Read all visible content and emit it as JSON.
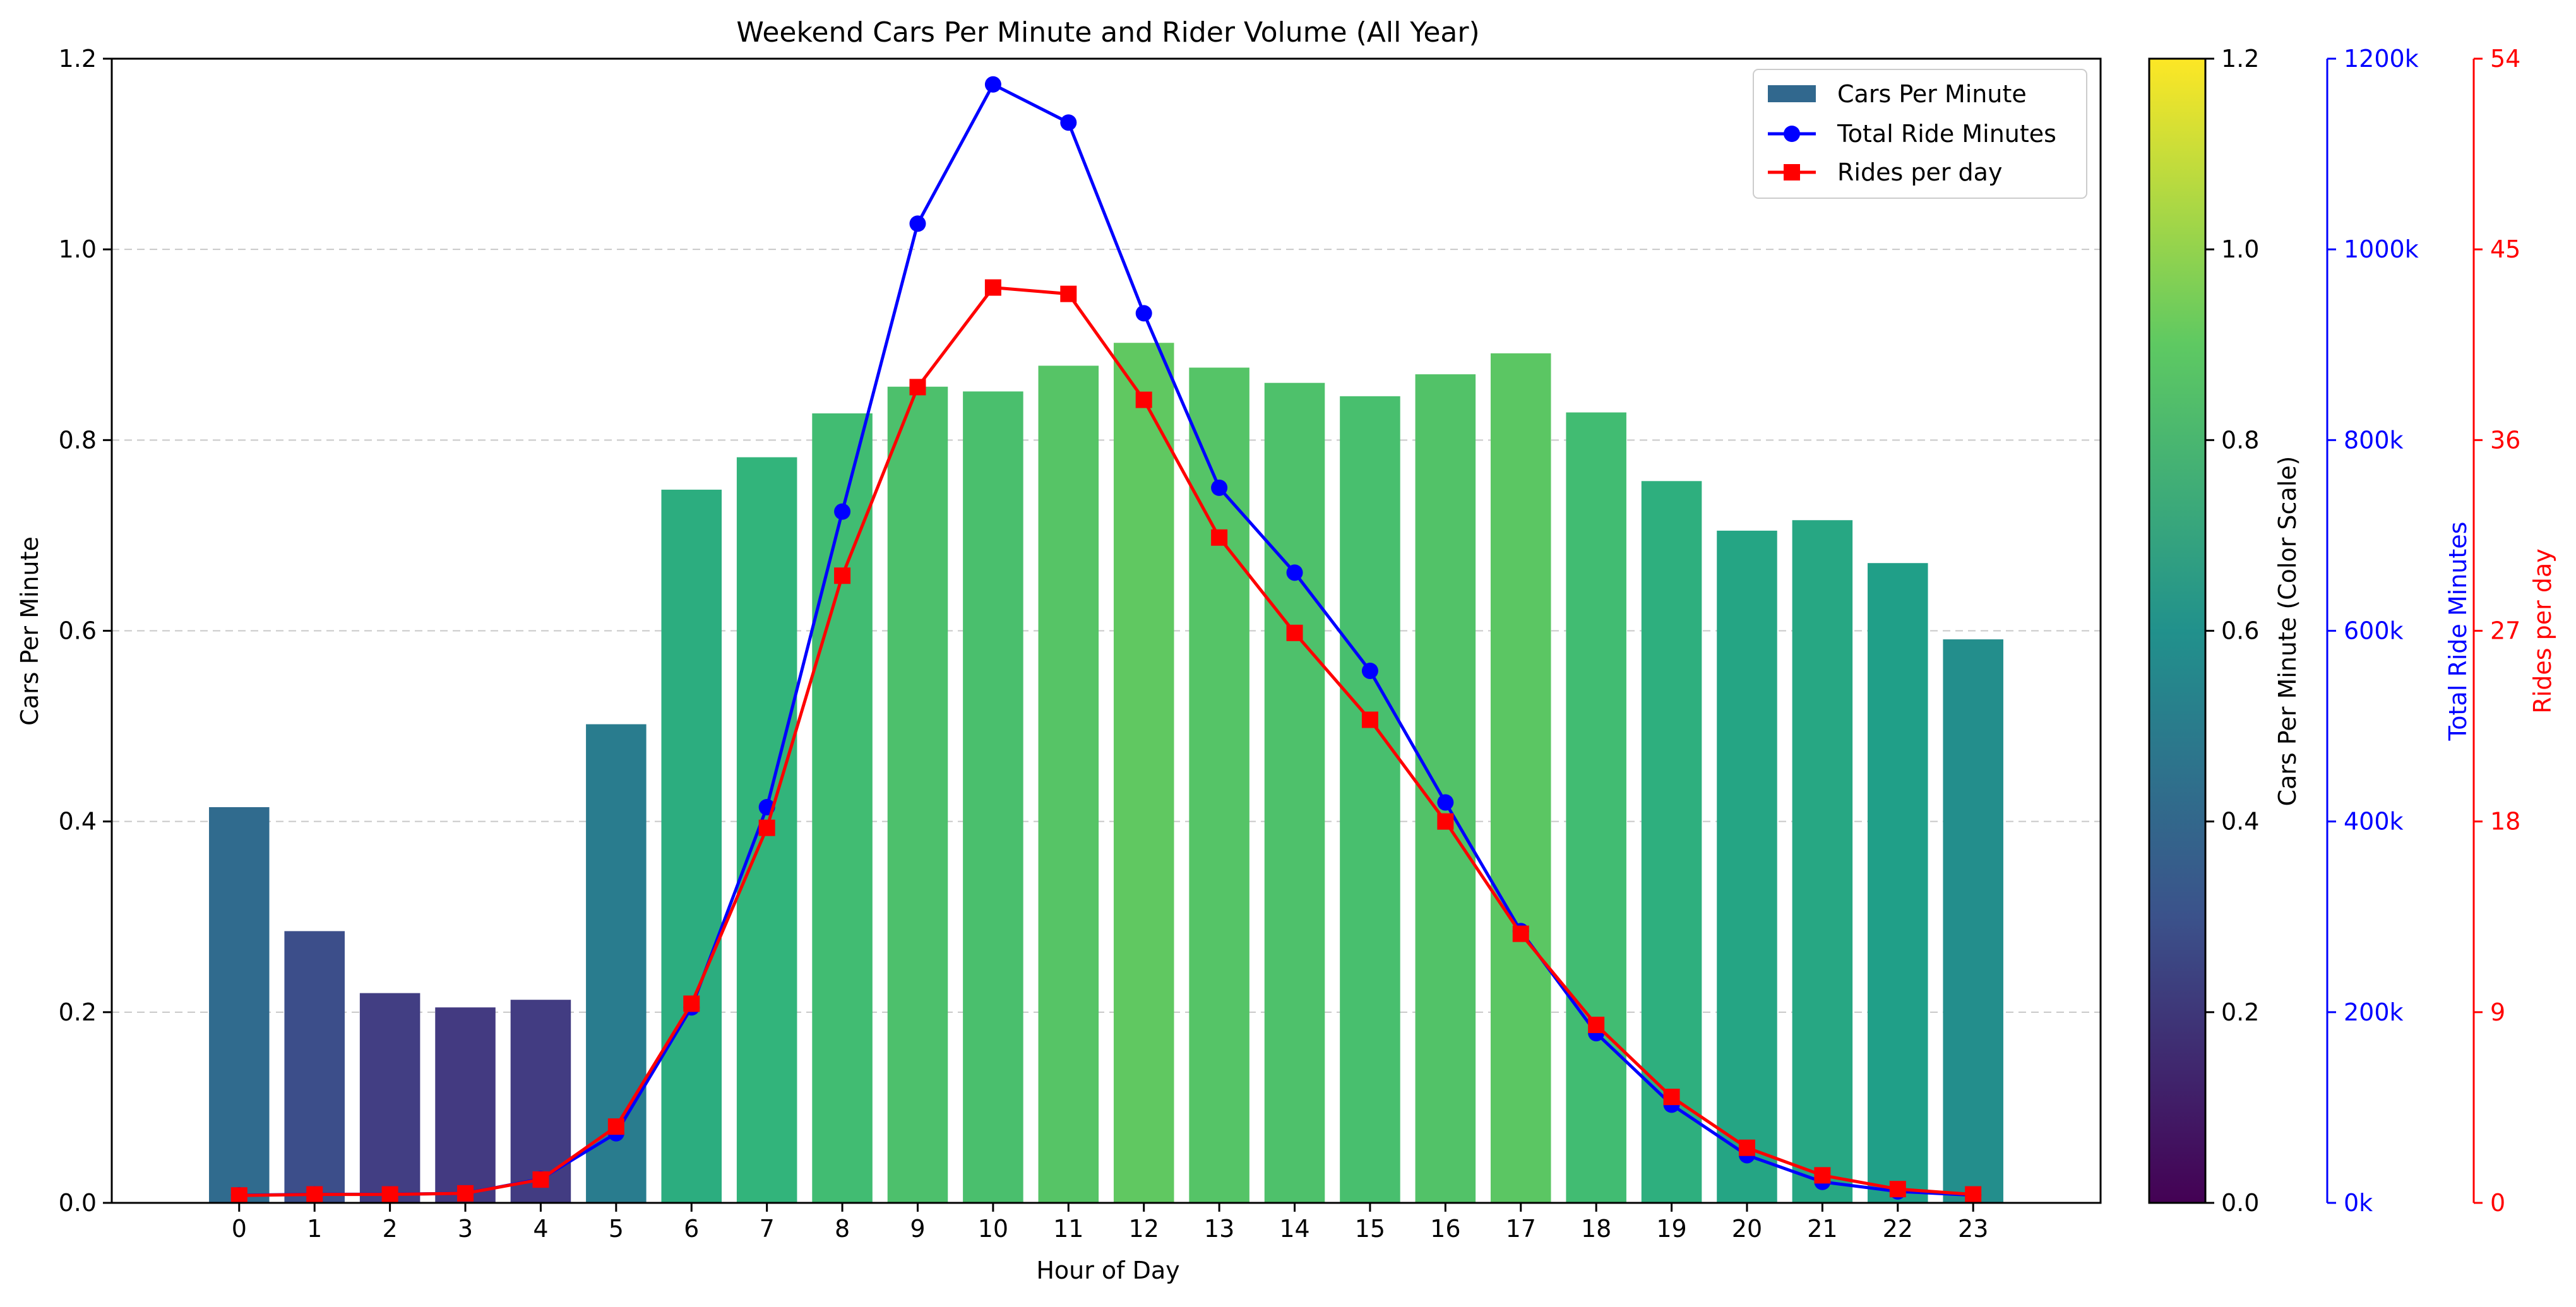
{
  "chart_data": {
    "type": "bar",
    "title": "Weekend Cars Per Minute and Rider Volume (All Year)",
    "xlabel": "Hour of Day",
    "ylabel": "Cars Per Minute",
    "categories": [
      "0",
      "1",
      "2",
      "3",
      "4",
      "5",
      "6",
      "7",
      "8",
      "9",
      "10",
      "11",
      "12",
      "13",
      "14",
      "15",
      "16",
      "17",
      "18",
      "19",
      "20",
      "21",
      "22",
      "23"
    ],
    "ylim": [
      0,
      1.2
    ],
    "y_ticks": [
      "0.0",
      "0.2",
      "0.4",
      "0.6",
      "0.8",
      "1.0",
      "1.2"
    ],
    "grid": "horizontal dashed",
    "legend_position": "top-right",
    "series": [
      {
        "name": "Cars Per Minute",
        "type": "bar",
        "axis": "left",
        "colormap": "viridis",
        "values": [
          0.415,
          0.285,
          0.22,
          0.205,
          0.213,
          0.502,
          0.748,
          0.782,
          0.828,
          0.856,
          0.851,
          0.878,
          0.902,
          0.876,
          0.86,
          0.846,
          0.869,
          0.891,
          0.829,
          0.757,
          0.705,
          0.716,
          0.671,
          0.591
        ]
      },
      {
        "name": "Total Ride Minutes",
        "type": "line",
        "marker": "circle",
        "color": "#0000ff",
        "axis": "right1",
        "values": [
          8000,
          9000,
          9000,
          10000,
          25000,
          73000,
          205000,
          415000,
          725000,
          1027000,
          1173000,
          1133000,
          933000,
          750000,
          661000,
          558000,
          420000,
          285000,
          178000,
          103000,
          50000,
          22000,
          12000,
          8000
        ]
      },
      {
        "name": "Rides per day",
        "type": "line",
        "marker": "square",
        "color": "#ff0000",
        "axis": "right2",
        "values": [
          0.35,
          0.4,
          0.4,
          0.45,
          1.1,
          3.6,
          9.4,
          17.7,
          29.6,
          38.5,
          43.2,
          42.9,
          37.9,
          31.4,
          26.9,
          22.8,
          18.0,
          12.7,
          8.4,
          5.0,
          2.6,
          1.3,
          0.65,
          0.4
        ]
      }
    ],
    "colorbar": {
      "label": "Cars Per Minute (Color Scale)",
      "range": [
        0,
        1.2
      ],
      "ticks": [
        "0.0",
        "0.2",
        "0.4",
        "0.6",
        "0.8",
        "1.0",
        "1.2"
      ]
    },
    "right_axis_1": {
      "label": "Total Ride Minutes",
      "range": [
        0,
        1200000
      ],
      "ticks": [
        "0k",
        "200k",
        "400k",
        "600k",
        "800k",
        "1000k",
        "1200k"
      ],
      "color": "#0000ff"
    },
    "right_axis_2": {
      "label": "Rides per day",
      "range": [
        0,
        54
      ],
      "ticks": [
        "0",
        "9",
        "18",
        "27",
        "36",
        "45",
        "54"
      ],
      "color": "#ff0000"
    }
  }
}
